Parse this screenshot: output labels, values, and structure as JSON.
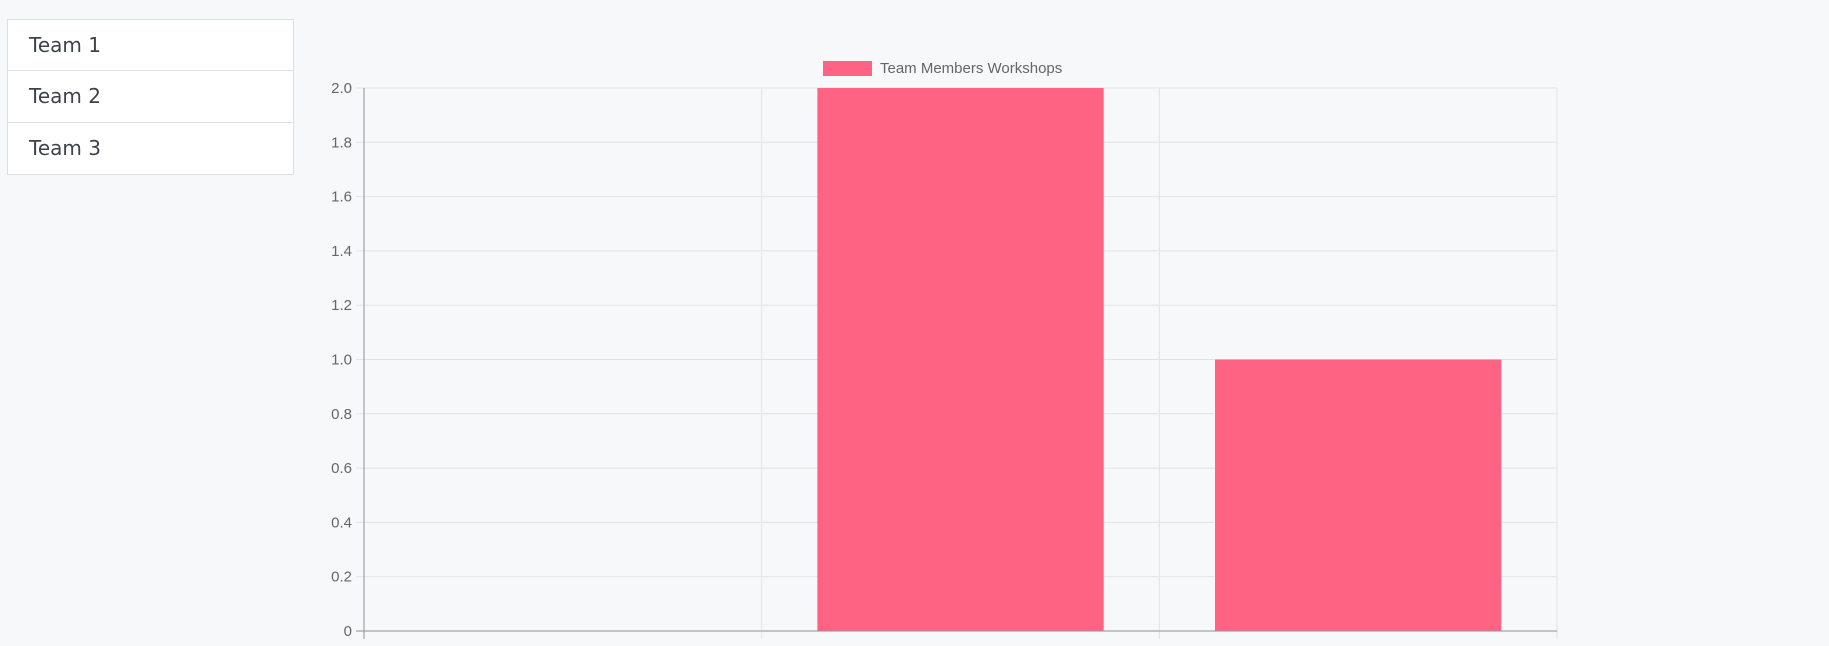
{
  "teams": {
    "items": [
      {
        "label": "Team 1"
      },
      {
        "label": "Team 2"
      },
      {
        "label": "Team 3"
      }
    ]
  },
  "colors": {
    "bar": "#ff6384",
    "grid": "#e1e3e6",
    "axis": "#8e9196",
    "tick_text": "#666666"
  },
  "chart_data": {
    "type": "bar",
    "categories": [
      "",
      "",
      ""
    ],
    "series": [
      {
        "name": "Team Members Workshops",
        "values": [
          0,
          2,
          1
        ]
      }
    ],
    "ylim": [
      0,
      2
    ],
    "yticks": [
      "0",
      "0.2",
      "0.4",
      "0.6",
      "0.8",
      "1.0",
      "1.2",
      "1.4",
      "1.6",
      "1.8",
      "2.0"
    ],
    "grid": true,
    "legend": "top-center"
  }
}
